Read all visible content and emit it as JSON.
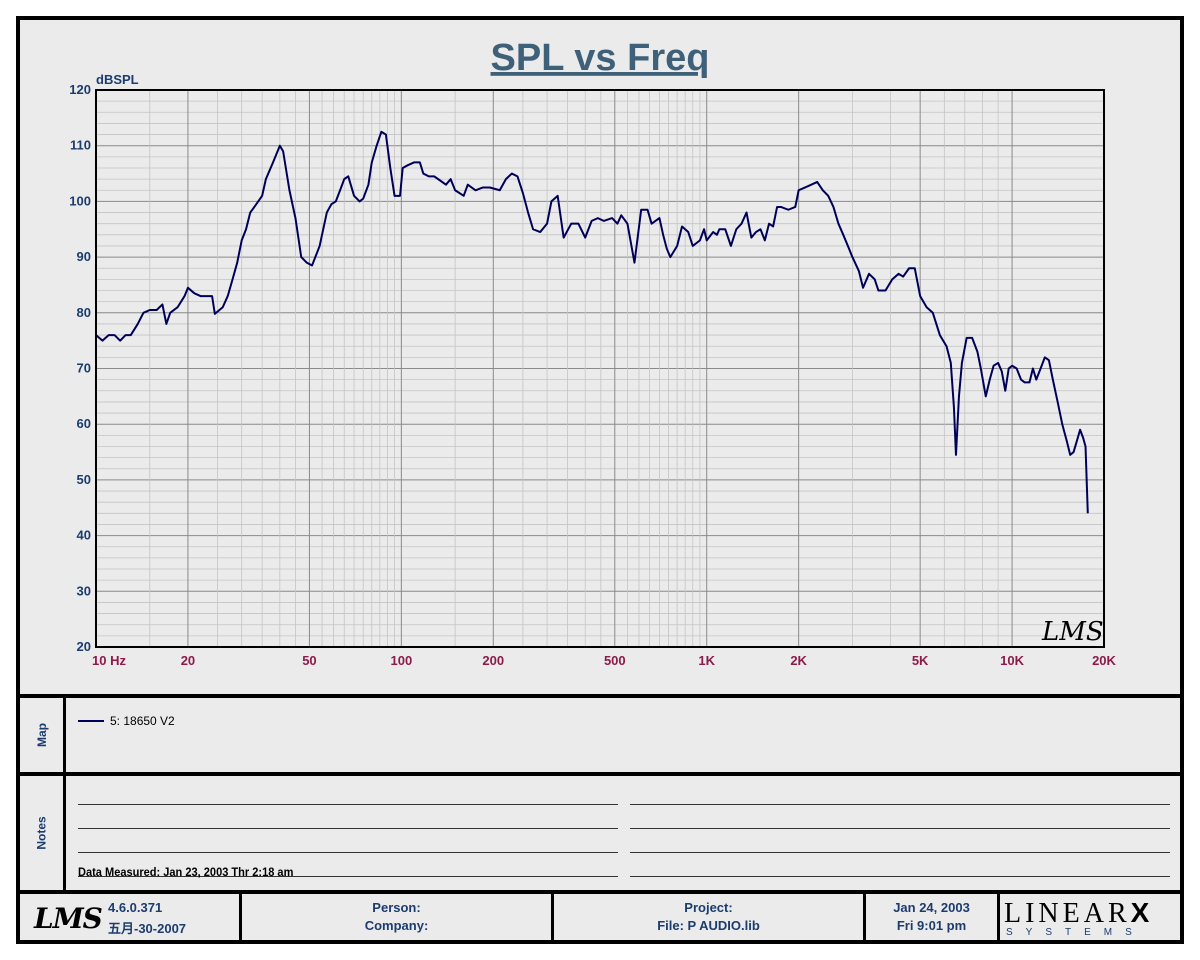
{
  "chart_data": {
    "type": "line",
    "title": "SPL vs Freq",
    "ylabel": "dBSPL",
    "x_scale": "log",
    "xlim": [
      10,
      20000
    ],
    "ylim": [
      20,
      120
    ],
    "yticks": [
      20,
      30,
      40,
      50,
      60,
      70,
      80,
      90,
      100,
      110,
      120
    ],
    "xticks": [
      {
        "v": 10,
        "label": "10  Hz"
      },
      {
        "v": 20,
        "label": "20"
      },
      {
        "v": 50,
        "label": "50"
      },
      {
        "v": 100,
        "label": "100"
      },
      {
        "v": 200,
        "label": "200"
      },
      {
        "v": 500,
        "label": "500"
      },
      {
        "v": 1000,
        "label": "1K"
      },
      {
        "v": 2000,
        "label": "2K"
      },
      {
        "v": 5000,
        "label": "5K"
      },
      {
        "v": 10000,
        "label": "10K"
      },
      {
        "v": 20000,
        "label": "20K"
      }
    ],
    "grid": true,
    "series": [
      {
        "name": "5: 18650 V2",
        "color": "#00005a",
        "points": [
          [
            10,
            76
          ],
          [
            10.5,
            75
          ],
          [
            11,
            76
          ],
          [
            11.5,
            76
          ],
          [
            12,
            75
          ],
          [
            12.5,
            76
          ],
          [
            13,
            76
          ],
          [
            13.7,
            78
          ],
          [
            14.3,
            80
          ],
          [
            15,
            80.5
          ],
          [
            15.8,
            80.5
          ],
          [
            16.5,
            81.5
          ],
          [
            17,
            78
          ],
          [
            17.5,
            80
          ],
          [
            18.5,
            81
          ],
          [
            19.5,
            83
          ],
          [
            20,
            84.5
          ],
          [
            21,
            83.5
          ],
          [
            22,
            83
          ],
          [
            23,
            83
          ],
          [
            24,
            83
          ],
          [
            24.5,
            79.8
          ],
          [
            26,
            81
          ],
          [
            27,
            83
          ],
          [
            28,
            86
          ],
          [
            29,
            89
          ],
          [
            30,
            93
          ],
          [
            31,
            95
          ],
          [
            32,
            98
          ],
          [
            33,
            99
          ],
          [
            35,
            101
          ],
          [
            36,
            104
          ],
          [
            38,
            107
          ],
          [
            40,
            110
          ],
          [
            41,
            109
          ],
          [
            43,
            102
          ],
          [
            45,
            97
          ],
          [
            47,
            90
          ],
          [
            49,
            89
          ],
          [
            51,
            88.5
          ],
          [
            54,
            92
          ],
          [
            57,
            98
          ],
          [
            59,
            99.5
          ],
          [
            61,
            100
          ],
          [
            63,
            102
          ],
          [
            65,
            104
          ],
          [
            67,
            104.5
          ],
          [
            70,
            101
          ],
          [
            73,
            100
          ],
          [
            75,
            100.5
          ],
          [
            78,
            103
          ],
          [
            80,
            107
          ],
          [
            83,
            110
          ],
          [
            86,
            112.5
          ],
          [
            89,
            112
          ],
          [
            92,
            106
          ],
          [
            95,
            101
          ],
          [
            99,
            101
          ],
          [
            101,
            106
          ],
          [
            105,
            106.5
          ],
          [
            110,
            107
          ],
          [
            115,
            107
          ],
          [
            118,
            105
          ],
          [
            123,
            104.5
          ],
          [
            128,
            104.5
          ],
          [
            132,
            104
          ],
          [
            140,
            103
          ],
          [
            145,
            104
          ],
          [
            150,
            102
          ],
          [
            160,
            101
          ],
          [
            165,
            103
          ],
          [
            175,
            102
          ],
          [
            185,
            102.5
          ],
          [
            195,
            102.5
          ],
          [
            210,
            102
          ],
          [
            220,
            104
          ],
          [
            230,
            105
          ],
          [
            240,
            104.5
          ],
          [
            250,
            101.5
          ],
          [
            260,
            98
          ],
          [
            270,
            95
          ],
          [
            285,
            94.5
          ],
          [
            300,
            96
          ],
          [
            310,
            100
          ],
          [
            325,
            101
          ],
          [
            340,
            93.5
          ],
          [
            360,
            96
          ],
          [
            380,
            96
          ],
          [
            400,
            93.5
          ],
          [
            420,
            96.5
          ],
          [
            440,
            97
          ],
          [
            460,
            96.5
          ],
          [
            490,
            97
          ],
          [
            510,
            96
          ],
          [
            525,
            97.5
          ],
          [
            550,
            96
          ],
          [
            580,
            89
          ],
          [
            610,
            98.5
          ],
          [
            640,
            98.5
          ],
          [
            660,
            96
          ],
          [
            700,
            97
          ],
          [
            720,
            94
          ],
          [
            740,
            91.5
          ],
          [
            760,
            90
          ],
          [
            800,
            92
          ],
          [
            830,
            95.5
          ],
          [
            870,
            94.5
          ],
          [
            900,
            92
          ],
          [
            950,
            93
          ],
          [
            980,
            95
          ],
          [
            1000,
            93
          ],
          [
            1050,
            94.5
          ],
          [
            1080,
            94
          ],
          [
            1100,
            95
          ],
          [
            1150,
            95
          ],
          [
            1200,
            92
          ],
          [
            1250,
            95
          ],
          [
            1300,
            96
          ],
          [
            1350,
            98
          ],
          [
            1400,
            93.5
          ],
          [
            1450,
            94.5
          ],
          [
            1500,
            95
          ],
          [
            1550,
            93
          ],
          [
            1600,
            96
          ],
          [
            1650,
            95.5
          ],
          [
            1700,
            99
          ],
          [
            1750,
            99
          ],
          [
            1850,
            98.5
          ],
          [
            1950,
            99
          ],
          [
            2000,
            102
          ],
          [
            2100,
            102.5
          ],
          [
            2200,
            103
          ],
          [
            2300,
            103.5
          ],
          [
            2400,
            102
          ],
          [
            2500,
            101
          ],
          [
            2600,
            99
          ],
          [
            2700,
            96
          ],
          [
            2800,
            94
          ],
          [
            2900,
            92
          ],
          [
            3000,
            90
          ],
          [
            3150,
            87.5
          ],
          [
            3250,
            84.5
          ],
          [
            3400,
            87
          ],
          [
            3550,
            86
          ],
          [
            3650,
            84
          ],
          [
            3850,
            84
          ],
          [
            4050,
            86
          ],
          [
            4250,
            87
          ],
          [
            4400,
            86.5
          ],
          [
            4600,
            88
          ],
          [
            4800,
            88
          ],
          [
            5000,
            83
          ],
          [
            5250,
            81
          ],
          [
            5500,
            80
          ],
          [
            5800,
            76
          ],
          [
            6100,
            74
          ],
          [
            6300,
            71
          ],
          [
            6450,
            63
          ],
          [
            6550,
            54.5
          ],
          [
            6700,
            65
          ],
          [
            6850,
            71
          ],
          [
            7100,
            75.5
          ],
          [
            7400,
            75.5
          ],
          [
            7700,
            73
          ],
          [
            7900,
            70
          ],
          [
            8200,
            65
          ],
          [
            8450,
            68
          ],
          [
            8700,
            70.5
          ],
          [
            9000,
            71
          ],
          [
            9250,
            69.5
          ],
          [
            9500,
            66
          ],
          [
            9750,
            70
          ],
          [
            10000,
            70.5
          ],
          [
            10350,
            70
          ],
          [
            10700,
            68
          ],
          [
            11000,
            67.5
          ],
          [
            11400,
            67.5
          ],
          [
            11700,
            70
          ],
          [
            12000,
            68
          ],
          [
            12400,
            70
          ],
          [
            12800,
            72
          ],
          [
            13200,
            71.5
          ],
          [
            13600,
            68
          ],
          [
            14100,
            64
          ],
          [
            14600,
            60
          ],
          [
            15100,
            57
          ],
          [
            15500,
            54.5
          ],
          [
            15900,
            55
          ],
          [
            16300,
            57
          ],
          [
            16700,
            59
          ],
          [
            17100,
            57.5
          ],
          [
            17400,
            56
          ],
          [
            17700,
            44
          ]
        ]
      }
    ]
  },
  "map": {
    "label": "Map",
    "legend_entry": "5: 18650 V2"
  },
  "notes": {
    "label": "Notes",
    "measured": "Data Measured: Jan 23, 2003  Thr  2:18 am"
  },
  "footer": {
    "logo": "LMS",
    "version": "4.6.0.371",
    "build_date": "五月-30-2007",
    "person": "Person:",
    "company": "Company:",
    "project": "Project:",
    "file": "File: P AUDIO.lib",
    "date": "Jan 24, 2003",
    "time": "Fri  9:01 pm",
    "brand_big": "LINEAR",
    "brand_x": "X",
    "brand_small": "SYSTEMS"
  },
  "watermark": "LMS"
}
